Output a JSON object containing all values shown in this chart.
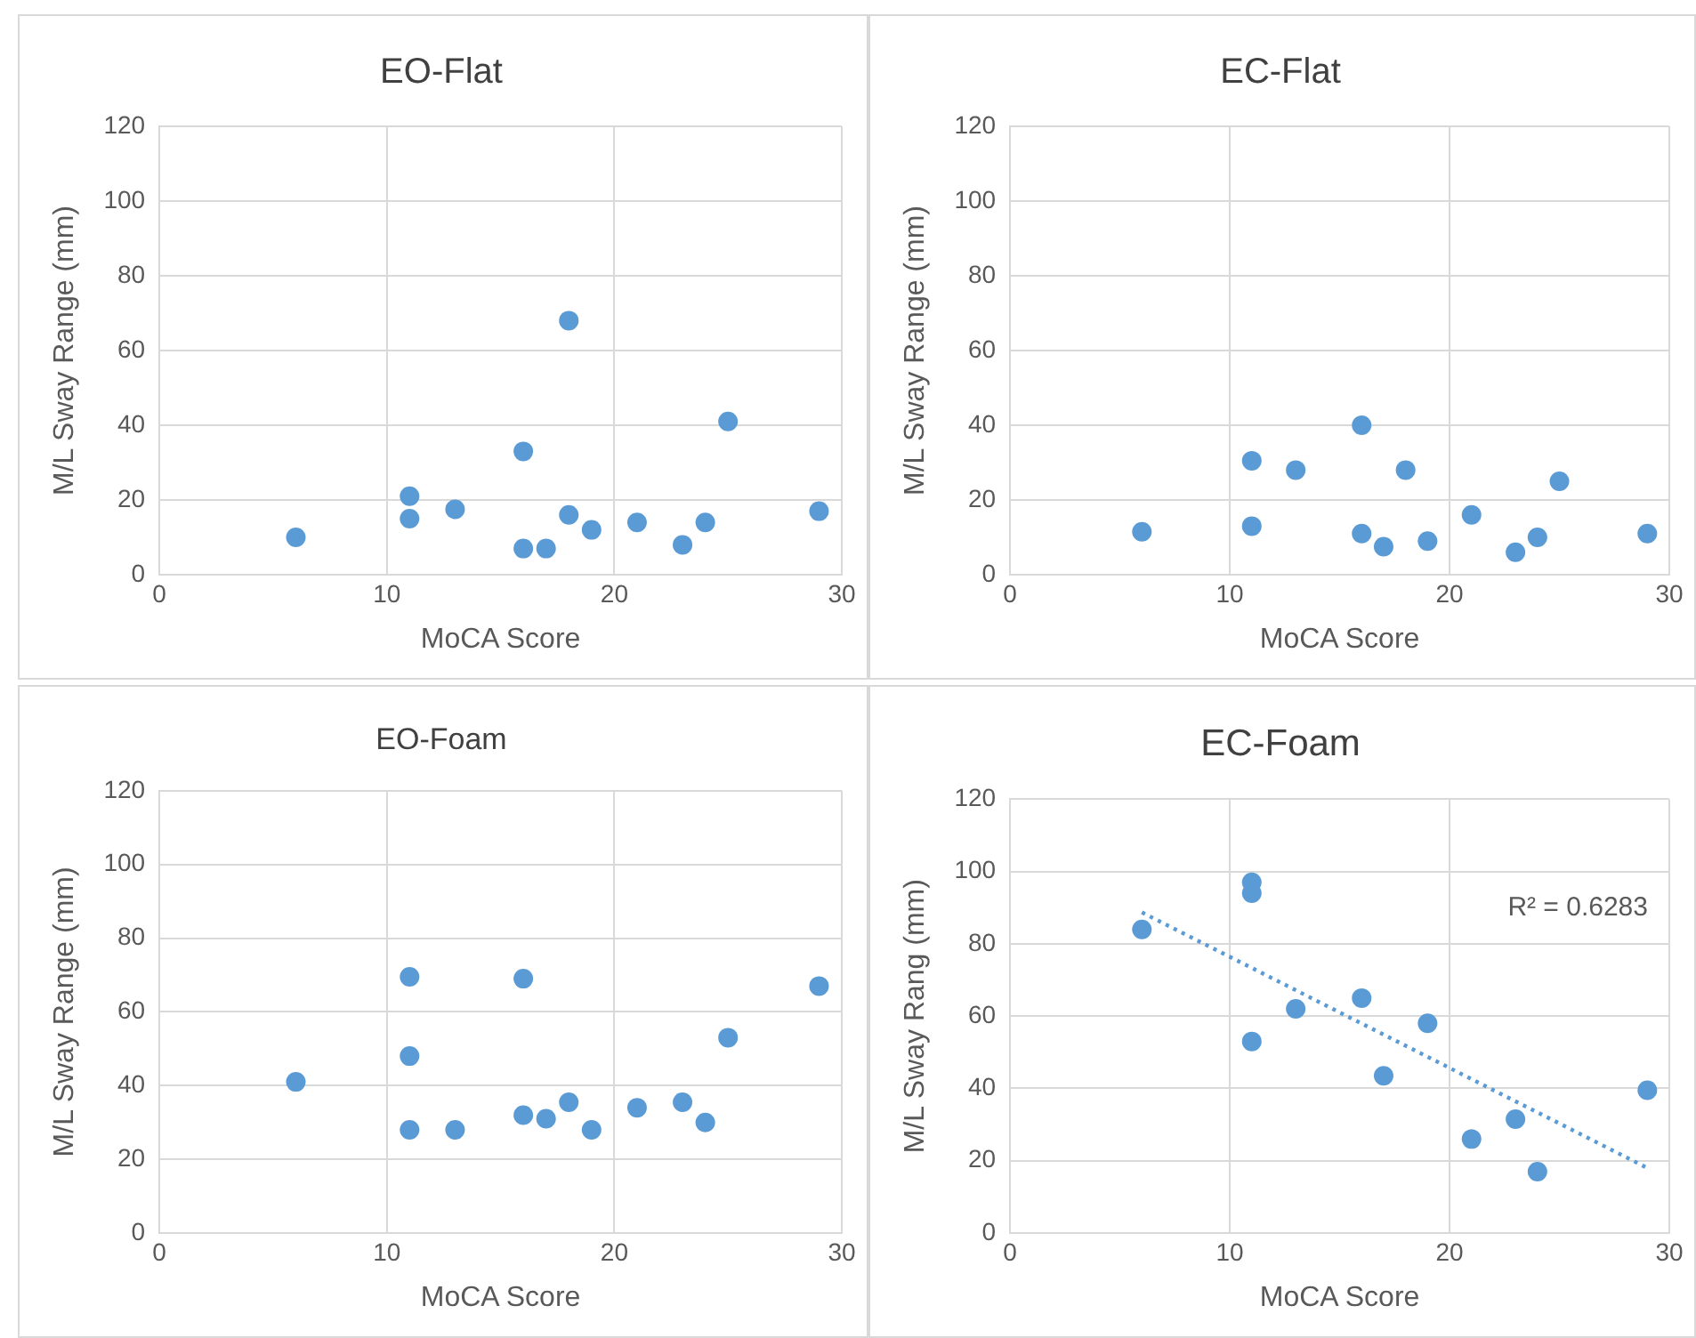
{
  "chart_data": [
    {
      "type": "scatter",
      "title": "EO-Flat",
      "xlabel": "MoCA Score",
      "ylabel": "M/L Sway Range (mm)",
      "xlim": [
        0,
        30
      ],
      "xticks": [
        0,
        10,
        20,
        30
      ],
      "ylim": [
        0,
        120
      ],
      "yticks": [
        0,
        20,
        40,
        60,
        80,
        100,
        120
      ],
      "grid": true,
      "legend": false,
      "marker": "circle",
      "series": [
        {
          "color": "#5b9bd5",
          "x": [
            6,
            11,
            11,
            13,
            16,
            16,
            17,
            18,
            18,
            19,
            21,
            23,
            24,
            25,
            29
          ],
          "values": [
            10,
            21,
            15,
            17.5,
            33,
            7,
            7,
            68,
            16,
            12,
            14,
            8,
            14,
            41,
            17
          ]
        }
      ]
    },
    {
      "type": "scatter",
      "title": "EC-Flat",
      "xlabel": "MoCA Score",
      "ylabel": "M/L Sway Range (mm)",
      "xlim": [
        0,
        30
      ],
      "xticks": [
        0,
        10,
        20,
        30
      ],
      "ylim": [
        0,
        120
      ],
      "yticks": [
        0,
        20,
        40,
        60,
        80,
        100,
        120
      ],
      "grid": true,
      "legend": false,
      "marker": "circle",
      "series": [
        {
          "color": "#5b9bd5",
          "x": [
            6,
            11,
            11,
            13,
            16,
            16,
            17,
            18,
            19,
            21,
            23,
            24,
            25,
            29
          ],
          "values": [
            11.5,
            30.5,
            13,
            28,
            40,
            11,
            7.5,
            28,
            9,
            16,
            6,
            10,
            25,
            11
          ]
        }
      ]
    },
    {
      "type": "scatter",
      "title": "EO-Foam",
      "xlabel": "MoCA Score",
      "ylabel": "M/L Sway Range (mm)",
      "xlim": [
        0,
        30
      ],
      "xticks": [
        0,
        10,
        20,
        30
      ],
      "ylim": [
        0,
        120
      ],
      "yticks": [
        0,
        20,
        40,
        60,
        80,
        100,
        120
      ],
      "grid": true,
      "legend": false,
      "marker": "circle",
      "series": [
        {
          "color": "#5b9bd5",
          "x": [
            6,
            11,
            11,
            11,
            13,
            16,
            16,
            17,
            18,
            19,
            21,
            23,
            24,
            25,
            29
          ],
          "values": [
            41,
            69.5,
            48,
            28,
            28,
            69,
            32,
            31,
            35.5,
            28,
            34,
            35.5,
            30,
            53,
            67
          ]
        }
      ]
    },
    {
      "type": "scatter",
      "title": "EC-Foam",
      "xlabel": "MoCA Score",
      "ylabel": "M/L Sway Rang (mm)",
      "xlim": [
        0,
        30
      ],
      "xticks": [
        0,
        10,
        20,
        30
      ],
      "ylim": [
        0,
        120
      ],
      "yticks": [
        0,
        20,
        40,
        60,
        80,
        100,
        120
      ],
      "grid": true,
      "legend": false,
      "marker": "circle",
      "annotations": [
        "R² = 0.6283"
      ],
      "series": [
        {
          "color": "#5b9bd5",
          "x": [
            6,
            11,
            11,
            11,
            13,
            16,
            17,
            19,
            21,
            23,
            24,
            29
          ],
          "values": [
            84,
            97,
            94,
            53,
            62,
            65,
            43.5,
            58,
            26,
            31.5,
            17,
            39.5
          ]
        },
        {
          "type": "line",
          "color": "#5b9bd5",
          "marker": "none",
          "line_style": "dotted",
          "x": [
            6,
            29
          ],
          "values": [
            88.7,
            18
          ]
        }
      ]
    }
  ]
}
